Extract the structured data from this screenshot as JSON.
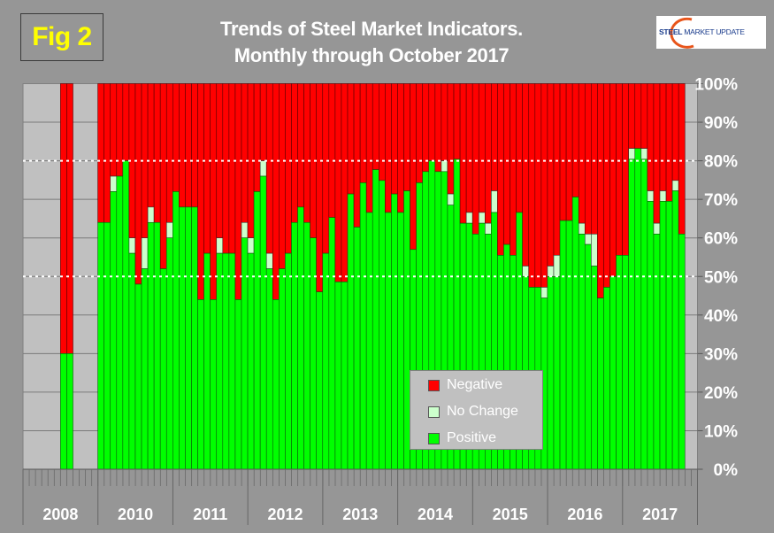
{
  "fig_label": "Fig 2",
  "title_line1": "Trends of Steel Market Indicators.",
  "title_line2": "Monthly through  October 2017",
  "logo": {
    "bold": "STEEL",
    "rest": " MARKET UPDATE"
  },
  "colors": {
    "negative": "#ff0000",
    "no_change": "#ccffcc",
    "positive": "#00ff00",
    "plot_bg": "#c0c0c0",
    "page_bg": "#969696"
  },
  "chart_data": {
    "type": "bar",
    "stacked": true,
    "title": "Trends of Steel Market Indicators. Monthly through  October 2017",
    "ylim": [
      0,
      100
    ],
    "yticks": [
      "0%",
      "10%",
      "20%",
      "30%",
      "40%",
      "50%",
      "60%",
      "70%",
      "80%",
      "90%",
      "100%"
    ],
    "reference_lines": [
      50,
      80
    ],
    "grid": true,
    "legend": {
      "placement": "bottom-center",
      "entries": [
        "Negative",
        "No Change",
        "Positive"
      ]
    },
    "year_labels": [
      "2008",
      "2010",
      "2011",
      "2012",
      "2013",
      "2014",
      "2015",
      "2016",
      "2017"
    ],
    "series_order": [
      "Positive",
      "No Change",
      "Negative"
    ],
    "segment_2008": {
      "months": [
        "2008-07",
        "2008-08"
      ],
      "positive": [
        30,
        30
      ],
      "no_change": [
        0,
        0
      ]
    },
    "monthly_2010_2017": {
      "start": "2010-01",
      "end": "2017-10",
      "positive": [
        64,
        64,
        72,
        76,
        80,
        56,
        48,
        52,
        64,
        64,
        52,
        60,
        72,
        68,
        68,
        68,
        44,
        56,
        44,
        56,
        56,
        56,
        44,
        60,
        56,
        72,
        76,
        52,
        44,
        52,
        56,
        64,
        68,
        64,
        60,
        46,
        56,
        65.3,
        48.6,
        48.6,
        71.4,
        62.8,
        74.3,
        66.6,
        77.7,
        74.9,
        66.6,
        71.4,
        66.6,
        72.2,
        57,
        74.3,
        77.2,
        80,
        77.2,
        77.2,
        68.5,
        80.4,
        63.8,
        63.8,
        61,
        63.8,
        61,
        66.6,
        55.5,
        58.3,
        55.5,
        66.6,
        50,
        47.2,
        47.2,
        44.4,
        50,
        50,
        64.5,
        64.5,
        70.6,
        61,
        58.3,
        52.7,
        44.4,
        47.2,
        50,
        55.5,
        55.5,
        80.4,
        83.2,
        80.4,
        69.5,
        61,
        69.5,
        69.5,
        72.2,
        61
      ],
      "no_change": [
        0,
        0,
        4,
        0,
        0,
        4,
        0,
        8,
        4,
        0,
        0,
        4,
        0,
        0,
        0,
        0,
        0,
        0,
        0,
        4,
        0,
        0,
        0,
        4,
        4,
        0,
        4,
        4,
        0,
        0,
        0,
        0,
        0,
        0,
        0,
        0,
        0,
        0,
        0,
        0,
        0,
        0,
        0,
        0,
        0,
        0,
        0,
        0,
        0,
        0,
        0,
        0,
        0,
        0,
        0,
        2.8,
        2.9,
        0,
        0,
        2.8,
        0,
        2.8,
        2.8,
        5.6,
        0,
        0,
        0,
        0,
        2.7,
        0,
        0,
        2.8,
        2.7,
        5.5,
        0,
        0,
        0,
        2.8,
        2.7,
        8.3,
        0,
        0,
        0,
        0,
        0,
        2.8,
        0,
        2.8,
        2.7,
        2.8,
        2.7,
        0,
        2.7,
        0
      ]
    }
  }
}
